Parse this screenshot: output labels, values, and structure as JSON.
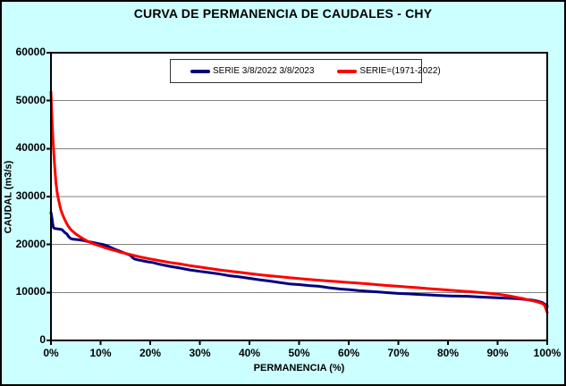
{
  "chart_data": {
    "type": "line",
    "title": "CURVA DE PERMANENCIA DE CAUDALES - CHY",
    "xlabel": "PERMANENCIA (%)",
    "ylabel": "CAUDAL (m3/s)",
    "xlim": [
      0,
      100
    ],
    "ylim": [
      0,
      60000
    ],
    "x_ticks": [
      0,
      10,
      20,
      30,
      40,
      50,
      60,
      70,
      80,
      90,
      100
    ],
    "x_tick_labels": [
      "0%",
      "10%",
      "20%",
      "30%",
      "40%",
      "50%",
      "60%",
      "70%",
      "80%",
      "90%",
      "100%"
    ],
    "y_ticks": [
      0,
      10000,
      20000,
      30000,
      40000,
      50000,
      60000
    ],
    "y_tick_labels": [
      "0",
      "10000",
      "20000",
      "30000",
      "40000",
      "50000",
      "60000"
    ],
    "grid": "horizontal",
    "gridline_color": "#808080",
    "background_color": "#CCFFFF",
    "plot_background": "#FFFFFF",
    "axis_color": "#000000",
    "legend_position": "top-center-inside",
    "series": [
      {
        "name": "SERIE 3/8/2022 3/8/2023",
        "color": "#000080",
        "points": [
          [
            0,
            26700
          ],
          [
            0.2,
            25500
          ],
          [
            0.3,
            24600
          ],
          [
            0.5,
            23500
          ],
          [
            0.8,
            23350
          ],
          [
            1.5,
            23250
          ],
          [
            2.2,
            23100
          ],
          [
            2.5,
            22800
          ],
          [
            2.8,
            22500
          ],
          [
            3.2,
            22200
          ],
          [
            3.6,
            21600
          ],
          [
            4,
            21250
          ],
          [
            4.5,
            21100
          ],
          [
            5.5,
            21000
          ],
          [
            6.5,
            20850
          ],
          [
            7.5,
            20600
          ],
          [
            8.5,
            20400
          ],
          [
            9.5,
            20200
          ],
          [
            10.5,
            20000
          ],
          [
            11,
            19850
          ],
          [
            11.5,
            19650
          ],
          [
            12,
            19400
          ],
          [
            13,
            18950
          ],
          [
            14,
            18550
          ],
          [
            15,
            18150
          ],
          [
            16,
            17750
          ],
          [
            16.3,
            17400
          ],
          [
            16.8,
            17000
          ],
          [
            17.5,
            16800
          ],
          [
            18.5,
            16600
          ],
          [
            19.5,
            16400
          ],
          [
            20.5,
            16250
          ],
          [
            22,
            15850
          ],
          [
            24,
            15450
          ],
          [
            26,
            15100
          ],
          [
            28,
            14700
          ],
          [
            30,
            14400
          ],
          [
            32,
            14150
          ],
          [
            34,
            13850
          ],
          [
            36,
            13500
          ],
          [
            38,
            13250
          ],
          [
            40,
            12950
          ],
          [
            42,
            12650
          ],
          [
            44,
            12400
          ],
          [
            46,
            12100
          ],
          [
            48,
            11800
          ],
          [
            50,
            11650
          ],
          [
            52,
            11450
          ],
          [
            54,
            11300
          ],
          [
            56,
            11000
          ],
          [
            58,
            10750
          ],
          [
            60,
            10600
          ],
          [
            62,
            10400
          ],
          [
            64,
            10250
          ],
          [
            66,
            10100
          ],
          [
            68,
            9950
          ],
          [
            70,
            9800
          ],
          [
            72,
            9700
          ],
          [
            74,
            9600
          ],
          [
            76,
            9500
          ],
          [
            78,
            9400
          ],
          [
            80,
            9300
          ],
          [
            82,
            9250
          ],
          [
            84,
            9200
          ],
          [
            86,
            9100
          ],
          [
            88,
            9000
          ],
          [
            90,
            8900
          ],
          [
            92,
            8800
          ],
          [
            94,
            8700
          ],
          [
            96,
            8500
          ],
          [
            97,
            8400
          ],
          [
            98,
            8200
          ],
          [
            99,
            7900
          ],
          [
            99.6,
            7500
          ],
          [
            100,
            7100
          ]
        ]
      },
      {
        "name": "SERIE=(1971-2022)",
        "color": "#FF0000",
        "points": [
          [
            0,
            51800
          ],
          [
            0.2,
            46500
          ],
          [
            0.4,
            42000
          ],
          [
            0.7,
            37000
          ],
          [
            1,
            33000
          ],
          [
            1.3,
            30500
          ],
          [
            1.6,
            29000
          ],
          [
            2,
            27200
          ],
          [
            2.5,
            25800
          ],
          [
            3,
            24700
          ],
          [
            3.5,
            23800
          ],
          [
            4,
            23100
          ],
          [
            5,
            22200
          ],
          [
            6,
            21500
          ],
          [
            7,
            20900
          ],
          [
            8,
            20400
          ],
          [
            9,
            20000
          ],
          [
            10,
            19650
          ],
          [
            11,
            19300
          ],
          [
            12,
            19000
          ],
          [
            13,
            18700
          ],
          [
            14,
            18400
          ],
          [
            15,
            18150
          ],
          [
            16,
            17900
          ],
          [
            17,
            17650
          ],
          [
            18,
            17400
          ],
          [
            19,
            17200
          ],
          [
            20,
            17000
          ],
          [
            22,
            16600
          ],
          [
            24,
            16250
          ],
          [
            26,
            15950
          ],
          [
            28,
            15600
          ],
          [
            30,
            15300
          ],
          [
            32,
            15000
          ],
          [
            34,
            14700
          ],
          [
            36,
            14450
          ],
          [
            38,
            14200
          ],
          [
            40,
            13950
          ],
          [
            42,
            13700
          ],
          [
            44,
            13500
          ],
          [
            46,
            13300
          ],
          [
            48,
            13100
          ],
          [
            50,
            12900
          ],
          [
            52,
            12700
          ],
          [
            54,
            12550
          ],
          [
            56,
            12400
          ],
          [
            58,
            12250
          ],
          [
            60,
            12100
          ],
          [
            62,
            11950
          ],
          [
            64,
            11800
          ],
          [
            66,
            11600
          ],
          [
            68,
            11450
          ],
          [
            70,
            11300
          ],
          [
            72,
            11150
          ],
          [
            74,
            11000
          ],
          [
            76,
            10800
          ],
          [
            78,
            10650
          ],
          [
            80,
            10500
          ],
          [
            82,
            10350
          ],
          [
            84,
            10200
          ],
          [
            86,
            10050
          ],
          [
            88,
            9850
          ],
          [
            90,
            9650
          ],
          [
            91,
            9500
          ],
          [
            92,
            9350
          ],
          [
            93,
            9150
          ],
          [
            94,
            8950
          ],
          [
            95,
            8750
          ],
          [
            96,
            8500
          ],
          [
            97,
            8300
          ],
          [
            98,
            8050
          ],
          [
            99,
            7700
          ],
          [
            99.5,
            7300
          ],
          [
            100,
            5800
          ]
        ]
      }
    ]
  }
}
